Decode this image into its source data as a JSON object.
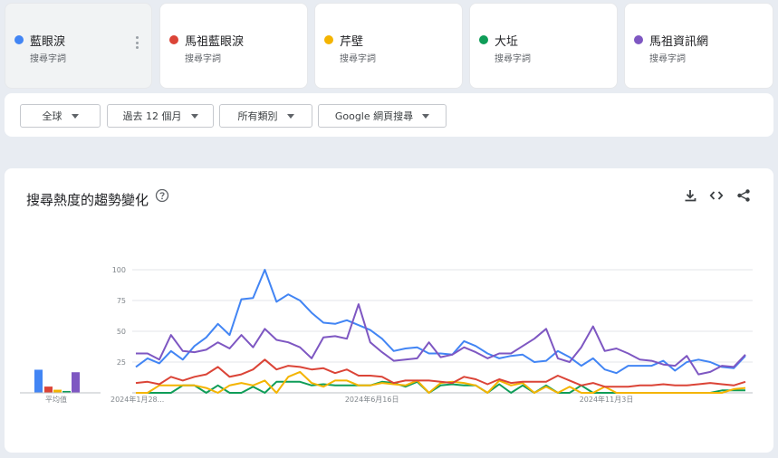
{
  "terms": [
    {
      "name": "藍眼淚",
      "sub": "搜尋字詞",
      "color": "#4285f4",
      "color_name": "blue"
    },
    {
      "name": "馬祖藍眼淚",
      "sub": "搜尋字詞",
      "color": "#db4437",
      "color_name": "red"
    },
    {
      "name": "芹壁",
      "sub": "搜尋字詞",
      "color": "#f4b400",
      "color_name": "yellow"
    },
    {
      "name": "大坵",
      "sub": "搜尋字詞",
      "color": "#0f9d58",
      "color_name": "green"
    },
    {
      "name": "馬祖資訊網",
      "sub": "搜尋字詞",
      "color": "#7e57c2",
      "color_name": "purple"
    }
  ],
  "filters": {
    "region": "全球",
    "time": "過去 12 個月",
    "category": "所有類別",
    "property": "Google 網頁搜尋"
  },
  "panel": {
    "title": "搜尋熱度的趨勢變化",
    "icons": [
      "help-icon",
      "download-icon",
      "embed-icon",
      "share-icon"
    ]
  },
  "chart_data": {
    "type": "line",
    "x_tick_labels": [
      "2024年1月28...",
      "2024年6月16日",
      "2024年11月3日"
    ],
    "ylim": [
      0,
      100
    ],
    "y_ticks": [
      25,
      50,
      75,
      100
    ],
    "grid": true,
    "average_label": "平均值",
    "averages": [
      {
        "name": "藍眼淚",
        "value": 37
      },
      {
        "name": "馬祖藍眼淚",
        "value": 10
      },
      {
        "name": "芹壁",
        "value": 5
      },
      {
        "name": "大坵",
        "value": 3
      },
      {
        "name": "馬祖資訊網",
        "value": 33
      }
    ],
    "series": [
      {
        "name": "藍眼淚",
        "values": [
          21,
          28,
          24,
          34,
          27,
          38,
          45,
          56,
          47,
          76,
          77,
          100,
          74,
          80,
          75,
          65,
          57,
          56,
          59,
          55,
          51,
          44,
          34,
          36,
          37,
          32,
          32,
          31,
          42,
          38,
          32,
          28,
          30,
          31,
          25,
          26,
          34,
          29,
          22,
          28,
          19,
          16,
          22,
          22,
          22,
          26,
          18,
          25,
          27,
          25,
          21,
          20,
          30
        ]
      },
      {
        "name": "馬祖藍眼淚",
        "values": [
          8,
          9,
          7,
          13,
          10,
          13,
          15,
          21,
          13,
          15,
          19,
          27,
          19,
          22,
          21,
          19,
          20,
          16,
          19,
          14,
          14,
          13,
          8,
          10,
          10,
          10,
          9,
          8,
          13,
          11,
          7,
          11,
          8,
          9,
          9,
          9,
          14,
          10,
          6,
          8,
          5,
          5,
          5,
          6,
          6,
          7,
          6,
          6,
          7,
          8,
          7,
          6,
          9
        ]
      },
      {
        "name": "芹壁",
        "values": [
          0,
          0,
          6,
          6,
          6,
          6,
          4,
          0,
          6,
          8,
          6,
          10,
          0,
          13,
          17,
          8,
          5,
          10,
          10,
          6,
          6,
          8,
          7,
          6,
          10,
          0,
          8,
          9,
          8,
          6,
          0,
          10,
          6,
          8,
          0,
          5,
          0,
          5,
          0,
          0,
          5,
          0,
          0,
          0,
          0,
          0,
          0,
          0,
          0,
          0,
          0,
          3,
          4
        ]
      },
      {
        "name": "大坵",
        "values": [
          0,
          0,
          0,
          0,
          6,
          6,
          0,
          6,
          0,
          0,
          5,
          0,
          9,
          9,
          9,
          6,
          7,
          6,
          6,
          6,
          6,
          9,
          8,
          5,
          9,
          0,
          6,
          7,
          6,
          6,
          0,
          7,
          0,
          6,
          0,
          6,
          0,
          0,
          6,
          0,
          0,
          0,
          0,
          0,
          0,
          0,
          0,
          0,
          0,
          0,
          2,
          2,
          2
        ]
      },
      {
        "name": "馬祖資訊網",
        "values": [
          32,
          32,
          27,
          47,
          34,
          33,
          35,
          41,
          36,
          47,
          37,
          52,
          43,
          41,
          37,
          28,
          45,
          46,
          44,
          72,
          41,
          33,
          26,
          27,
          28,
          41,
          29,
          31,
          37,
          33,
          28,
          32,
          32,
          38,
          44,
          52,
          28,
          25,
          37,
          54,
          34,
          36,
          32,
          27,
          26,
          23,
          22,
          30,
          15,
          17,
          22,
          21,
          31
        ]
      }
    ]
  }
}
